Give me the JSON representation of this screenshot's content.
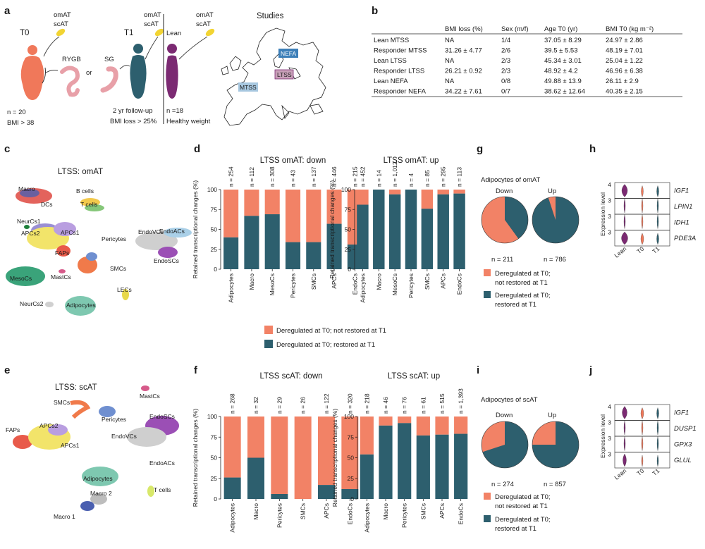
{
  "colors": {
    "not_restored": "#f28266",
    "restored": "#2d5f6e",
    "lean_purple": "#7b2a72",
    "t0_orange": "#f0785a",
    "t1_teal": "#2d5f6e",
    "yellow": "#f2d433",
    "pink": "#e8a0a8"
  },
  "panel_a": {
    "label": "a",
    "t0": "T0",
    "t1": "T1",
    "lean": "Lean",
    "omAT": "omAT",
    "scAT": "scAT",
    "rygb": "RYGB",
    "or": "or",
    "sg": "SG",
    "n_t0": "n = 20",
    "bmi_t0": "BMI > 38",
    "followup": "2 yr follow-up",
    "bmi_loss": "BMI loss > 25%",
    "n_lean": "n =18",
    "healthy": "Healthy weight",
    "studies": "Studies",
    "nefa": "NEFA",
    "ltss": "LTSS",
    "mtss": "MTSS"
  },
  "panel_b": {
    "label": "b",
    "headers": [
      "",
      "BMI loss (%)",
      "Sex (m/f)",
      "Age T0 (yr)",
      "BMI T0 (kg m⁻²)"
    ],
    "rows": [
      [
        "Lean MTSS",
        "NA",
        "1/4",
        "37.05 ± 8.29",
        "24.97 ± 2.86"
      ],
      [
        "Responder MTSS",
        "31.26 ± 4.77",
        "2/6",
        "39.5 ± 5.53",
        "48.19 ± 7.01"
      ],
      [
        "Lean LTSS",
        "NA",
        "2/3",
        "45.34 ± 3.01",
        "25.04 ± 1.22"
      ],
      [
        "Responder LTSS",
        "26.21 ± 0.92",
        "2/3",
        "48.92 ± 4.2",
        "46.96 ± 6.38"
      ],
      [
        "Lean NEFA",
        "NA",
        "0/8",
        "49.88 ± 13.9",
        "26.11 ± 2.9"
      ],
      [
        "Responder NEFA",
        "34.22 ± 7.61",
        "0/7",
        "38.62 ± 12.64",
        "40.35 ± 2.15"
      ]
    ]
  },
  "panel_c": {
    "label": "c",
    "title": "LTSS: omAT",
    "clusters": [
      "Macro",
      "DCs",
      "B cells",
      "T cells",
      "NeurCs1",
      "APCs2",
      "APCs1",
      "FAPs",
      "Pericytes",
      "EndoVCs",
      "EndoACs",
      "EndoSCs",
      "SMCs",
      "MesoCs",
      "MastCs",
      "LECs",
      "NeurCs2",
      "Adipocytes"
    ]
  },
  "panel_e": {
    "label": "e",
    "title": "LTSS: scAT",
    "clusters": [
      "MastCs",
      "SMCs",
      "Pericytes",
      "EndoSCs",
      "APCs2",
      "FAPs",
      "APCs1",
      "EndoVCs",
      "Adipocytes",
      "EndoACs",
      "T cells",
      "Macro 2",
      "Macro 1"
    ]
  },
  "panel_d": {
    "label": "d",
    "ylabel": "Retained transcriptional changes (%)",
    "legend_not_restored": "Deregulated at T0; not restored at T1",
    "legend_restored": "Deregulated at T0; restored at T1"
  },
  "panel_f": {
    "label": "f",
    "ylabel": "Retained transcriptional changes (%)"
  },
  "panel_g": {
    "label": "g",
    "title": "Adipocytes of omAT",
    "down": "Down",
    "up": "Up",
    "n_down": "n = 211",
    "n_up": "n = 786",
    "leg1a": "Deregulated at T0;",
    "leg1b": "not restored at T1",
    "leg2a": "Deregulated at T0;",
    "leg2b": "restored at T1"
  },
  "panel_i": {
    "label": "i",
    "title": "Adipocytes of scAT",
    "down": "Down",
    "up": "Up",
    "n_down": "n = 274",
    "n_up": "n = 857",
    "leg1a": "Deregulated at T0;",
    "leg1b": "not restored at T1",
    "leg2a": "Deregulated at T0;",
    "leg2b": "restored at T1"
  },
  "panel_h": {
    "label": "h",
    "ylabel": "Expression level",
    "genes": [
      "IGF1",
      "LPIN1",
      "IDH1",
      "PDE3A"
    ],
    "groups": [
      "Lean",
      "T0",
      "T1"
    ],
    "ticks": [
      "4",
      "3",
      "3",
      "3"
    ]
  },
  "panel_j": {
    "label": "j",
    "ylabel": "Expression level",
    "genes": [
      "IGF1",
      "DUSP1",
      "GPX3",
      "GLUL"
    ],
    "groups": [
      "Lean",
      "T0",
      "T1"
    ],
    "ticks": [
      "4",
      "3",
      "3",
      "3"
    ]
  },
  "chart_data": [
    {
      "type": "bar",
      "title": "LTSS omAT: down",
      "ylabel": "Retained transcriptional changes (%)",
      "ylim": [
        0,
        100
      ],
      "yticks": [
        "0",
        "25",
        "50",
        "75",
        "100"
      ],
      "categories": [
        "Adipocytes",
        "Macro",
        "MesoCs",
        "Pericytes",
        "SMCs",
        "APCs",
        "EndoCs"
      ],
      "n_labels": [
        "n = 254",
        "n = 112",
        "n = 308",
        "n = 43",
        "n = 137",
        "n = 446",
        "n = 215"
      ],
      "series": [
        {
          "name": "Deregulated at T0; restored at T1",
          "values": [
            40,
            67,
            69,
            34,
            34,
            57,
            31
          ]
        },
        {
          "name": "Deregulated at T0; not restored at T1",
          "values": [
            60,
            33,
            31,
            66,
            66,
            43,
            69
          ]
        }
      ]
    },
    {
      "type": "bar",
      "title": "LTSS omAT: up",
      "ylabel": "Retained transcriptional changes (%)",
      "ylim": [
        0,
        100
      ],
      "yticks": [
        "0",
        "25",
        "50",
        "75",
        "100"
      ],
      "categories": [
        "Adipocytes",
        "Macro",
        "MesoCs",
        "Pericytes",
        "SMCs",
        "APCs",
        "EndoCs"
      ],
      "n_labels": [
        "n = 452",
        "n = 14",
        "n = 1,012",
        "n = 4",
        "n = 85",
        "n = 295",
        "n = 113"
      ],
      "series": [
        {
          "name": "Deregulated at T0; restored at T1",
          "values": [
            81,
            100,
            94,
            100,
            76,
            94,
            95
          ]
        },
        {
          "name": "Deregulated at T0; not restored at T1",
          "values": [
            19,
            0,
            6,
            0,
            24,
            6,
            5
          ]
        }
      ]
    },
    {
      "type": "bar",
      "title": "LTSS scAT: down",
      "ylabel": "Retained transcriptional changes (%)",
      "ylim": [
        0,
        100
      ],
      "yticks": [
        "0",
        "25",
        "50",
        "75",
        "100"
      ],
      "categories": [
        "Adipocytes",
        "Macro",
        "Pericytes",
        "SMCs",
        "APCs",
        "EndoCs"
      ],
      "n_labels": [
        "n = 268",
        "n = 32",
        "n = 29",
        "n = 26",
        "n = 122",
        "n = 320"
      ],
      "series": [
        {
          "name": "Deregulated at T0; restored at T1",
          "values": [
            26,
            50,
            6,
            0,
            17,
            12
          ]
        },
        {
          "name": "Deregulated at T0; not restored at T1",
          "values": [
            74,
            50,
            94,
            100,
            83,
            88
          ]
        }
      ]
    },
    {
      "type": "bar",
      "title": "LTSS scAT: up",
      "ylabel": "Retained transcriptional changes (%)",
      "ylim": [
        0,
        100
      ],
      "yticks": [
        "0",
        "25",
        "50",
        "75",
        "100"
      ],
      "categories": [
        "Adipocytes",
        "Macro",
        "Pericytes",
        "SMCs",
        "APCs",
        "EndoCs"
      ],
      "n_labels": [
        "n = 218",
        "n = 46",
        "n = 76",
        "n = 61",
        "n = 515",
        "n = 1,393"
      ],
      "series": [
        {
          "name": "Deregulated at T0; restored at T1",
          "values": [
            54,
            89,
            92,
            77,
            78,
            79
          ]
        },
        {
          "name": "Deregulated at T0; not restored at T1",
          "values": [
            46,
            11,
            8,
            23,
            22,
            21
          ]
        }
      ]
    },
    {
      "type": "pie",
      "title": "Adipocytes of omAT",
      "series": [
        {
          "name": "Down",
          "values": [
            60,
            40
          ],
          "labels": [
            "Deregulated at T0; not restored at T1",
            "Deregulated at T0; restored at T1"
          ]
        },
        {
          "name": "Up",
          "values": [
            5,
            95
          ],
          "labels": [
            "Deregulated at T0; not restored at T1",
            "Deregulated at T0; restored at T1"
          ]
        }
      ]
    },
    {
      "type": "pie",
      "title": "Adipocytes of scAT",
      "series": [
        {
          "name": "Down",
          "values": [
            30,
            70
          ],
          "labels": [
            "Deregulated at T0; not restored at T1",
            "Deregulated at T0; restored at T1"
          ]
        },
        {
          "name": "Up",
          "values": [
            25,
            75
          ],
          "labels": [
            "Deregulated at T0; not restored at T1",
            "Deregulated at T0; restored at T1"
          ]
        }
      ]
    }
  ]
}
